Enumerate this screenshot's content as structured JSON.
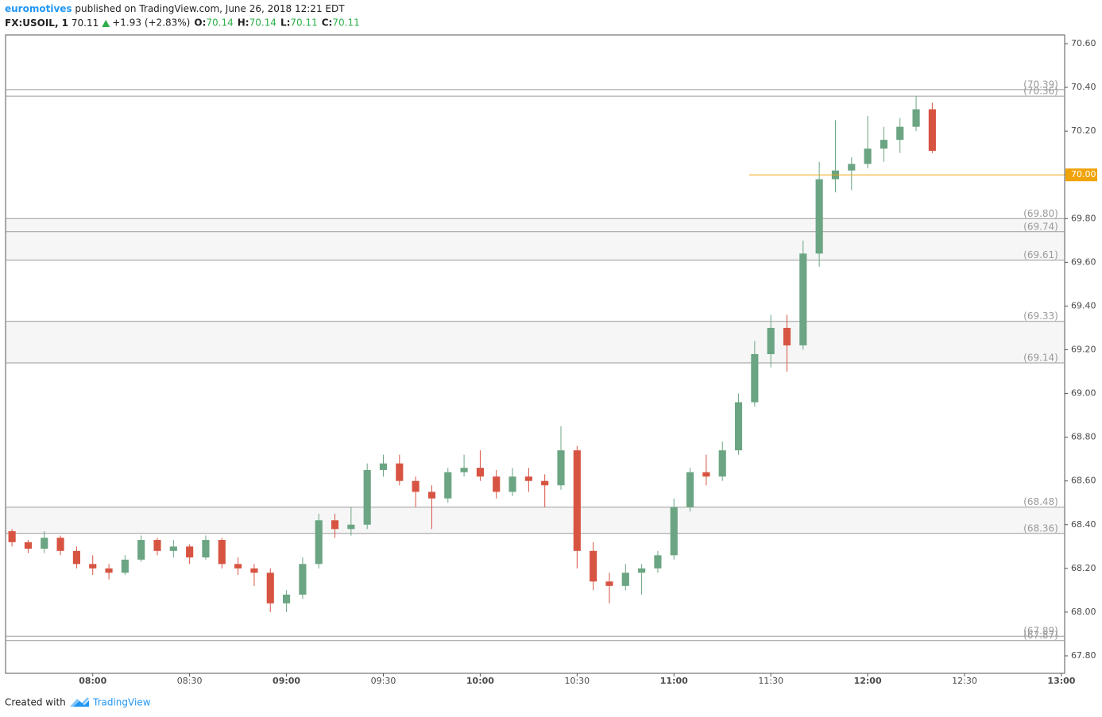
{
  "chart_data": {
    "type": "candlestick",
    "publisher": "euromotives",
    "published": "published on TradingView.com, June 26, 2018 12:21 EDT",
    "symbol": "FX:USOIL, 1",
    "last": 70.11,
    "change": "+1.93 (+2.83%)",
    "ohlc": [
      {
        "label": "O:",
        "value": 70.14
      },
      {
        "label": "H:",
        "value": 70.14
      },
      {
        "label": "L:",
        "value": 70.11
      },
      {
        "label": "C:",
        "value": 70.11
      }
    ],
    "up_color": "#6ba583",
    "down_color": "#d75442",
    "x": [
      "07:35",
      "07:40",
      "07:45",
      "07:50",
      "07:55",
      "08:00",
      "08:05",
      "08:10",
      "08:15",
      "08:20",
      "08:25",
      "08:30",
      "08:35",
      "08:40",
      "08:45",
      "08:50",
      "08:55",
      "09:00",
      "09:05",
      "09:10",
      "09:15",
      "09:20",
      "09:25",
      "09:30",
      "09:35",
      "09:40",
      "09:45",
      "09:50",
      "09:55",
      "10:00",
      "10:05",
      "10:10",
      "10:15",
      "10:20",
      "10:25",
      "10:30",
      "10:35",
      "10:40",
      "10:45",
      "10:50",
      "10:55",
      "11:00",
      "11:05",
      "11:10",
      "11:15",
      "11:20",
      "11:25",
      "11:30",
      "11:35",
      "11:40",
      "11:45",
      "11:50",
      "11:55",
      "12:00",
      "12:05",
      "12:10",
      "12:15",
      "12:20"
    ],
    "open": [
      68.37,
      68.32,
      68.29,
      68.34,
      68.28,
      68.22,
      68.2,
      68.18,
      68.24,
      68.33,
      68.28,
      68.3,
      68.25,
      68.33,
      68.22,
      68.2,
      68.18,
      68.04,
      68.08,
      68.22,
      68.42,
      68.38,
      68.4,
      68.65,
      68.68,
      68.6,
      68.55,
      68.52,
      68.64,
      68.66,
      68.62,
      68.55,
      68.62,
      68.6,
      68.58,
      68.74,
      68.28,
      68.14,
      68.12,
      68.18,
      68.2,
      68.26,
      68.48,
      68.64,
      68.62,
      68.74,
      68.96,
      69.18,
      69.3,
      69.22,
      69.64,
      69.98,
      70.02,
      70.05,
      70.12,
      70.16,
      70.22,
      70.3
    ],
    "high": [
      68.38,
      68.33,
      68.37,
      68.35,
      68.3,
      68.26,
      68.22,
      68.26,
      68.35,
      68.34,
      68.33,
      68.31,
      68.35,
      68.34,
      68.25,
      68.22,
      68.2,
      68.1,
      68.25,
      68.45,
      68.45,
      68.48,
      68.68,
      68.72,
      68.72,
      68.62,
      68.58,
      68.66,
      68.72,
      68.74,
      68.65,
      68.66,
      68.66,
      68.63,
      68.85,
      68.76,
      68.32,
      68.18,
      68.22,
      68.22,
      68.28,
      68.52,
      68.66,
      68.72,
      68.78,
      69.0,
      69.24,
      69.36,
      69.36,
      69.7,
      70.06,
      70.25,
      70.08,
      70.27,
      70.22,
      70.26,
      70.36,
      70.33
    ],
    "low": [
      68.3,
      68.27,
      68.27,
      68.26,
      68.2,
      68.17,
      68.15,
      68.17,
      68.23,
      68.26,
      68.25,
      68.22,
      68.24,
      68.2,
      68.17,
      68.12,
      68.0,
      68.0,
      68.06,
      68.2,
      68.34,
      68.35,
      68.38,
      68.62,
      68.58,
      68.48,
      68.38,
      68.5,
      68.62,
      68.6,
      68.52,
      68.53,
      68.55,
      68.48,
      68.56,
      68.2,
      68.1,
      68.04,
      68.1,
      68.08,
      68.18,
      68.24,
      68.46,
      68.58,
      68.6,
      68.72,
      68.94,
      69.12,
      69.1,
      69.2,
      69.58,
      69.92,
      69.93,
      70.03,
      70.06,
      70.1,
      70.2,
      70.1
    ],
    "close": [
      68.32,
      68.29,
      68.34,
      68.28,
      68.22,
      68.2,
      68.18,
      68.24,
      68.33,
      68.28,
      68.3,
      68.25,
      68.33,
      68.22,
      68.2,
      68.18,
      68.04,
      68.08,
      68.22,
      68.42,
      68.38,
      68.4,
      68.65,
      68.68,
      68.6,
      68.55,
      68.52,
      68.64,
      68.66,
      68.62,
      68.55,
      68.62,
      68.6,
      68.58,
      68.74,
      68.28,
      68.14,
      68.12,
      68.18,
      68.2,
      68.26,
      68.48,
      68.64,
      68.62,
      68.74,
      68.96,
      69.18,
      69.3,
      69.22,
      69.64,
      69.98,
      70.02,
      70.05,
      70.12,
      70.16,
      70.22,
      70.3,
      70.11
    ],
    "xlim": [
      "07:33",
      "13:01"
    ],
    "xticks": [
      "08:00",
      "08:30",
      "09:00",
      "09:30",
      "10:00",
      "10:30",
      "11:00",
      "11:30",
      "12:00",
      "12:30",
      "13:00"
    ],
    "ylim": [
      67.72,
      70.64
    ],
    "yticks": [
      {
        "value": 67.8,
        "label": "67.80"
      },
      {
        "value": 68,
        "label": "68.00"
      },
      {
        "value": 68.2,
        "label": "68.20"
      },
      {
        "value": 68.4,
        "label": "68.40"
      },
      {
        "value": 68.6,
        "label": "68.60"
      },
      {
        "value": 68.8,
        "label": "68.80"
      },
      {
        "value": 69,
        "label": "69.00"
      },
      {
        "value": 69.2,
        "label": "69.20"
      },
      {
        "value": 69.4,
        "label": "69.40"
      },
      {
        "value": 69.6,
        "label": "69.60"
      },
      {
        "value": 69.8,
        "label": "69.80"
      },
      {
        "value": 70,
        "label": "70.00"
      },
      {
        "value": 70.2,
        "label": "70.20"
      },
      {
        "value": 70.4,
        "label": "70.40"
      },
      {
        "value": 70.6,
        "label": "70.60"
      }
    ],
    "levels": [
      {
        "value": 70.39,
        "label": "(70.39)"
      },
      {
        "value": 70.36,
        "label": "(70.36)"
      },
      {
        "value": 69.8,
        "label": "(69.80)"
      },
      {
        "value": 69.74,
        "label": "(69.74)"
      },
      {
        "value": 69.61,
        "label": "(69.61)"
      },
      {
        "value": 69.33,
        "label": "(69.33)"
      },
      {
        "value": 69.14,
        "label": "(69.14)"
      },
      {
        "value": 68.48,
        "label": "(68.48)"
      },
      {
        "value": 68.36,
        "label": "(68.36)"
      },
      {
        "value": 67.89,
        "label": "(67.89)"
      },
      {
        "value": 67.87,
        "label": "(67.87)"
      }
    ],
    "price_line": {
      "value": 70,
      "label": "70.00",
      "color": "#f0a30a"
    },
    "footer": {
      "created": "Created with",
      "brand": "TradingView"
    }
  }
}
